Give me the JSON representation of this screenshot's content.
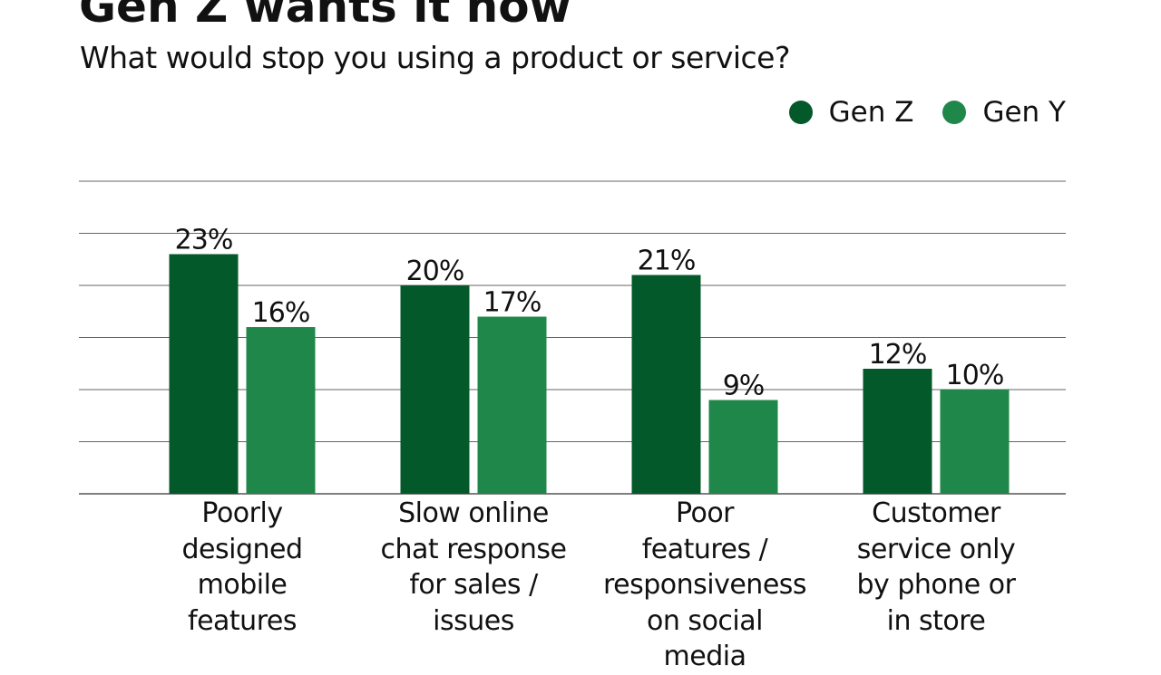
{
  "chart_data": {
    "type": "bar",
    "title": "Gen Z wants it now",
    "subtitle": "What would stop you using a product or service?",
    "categories": [
      "Poorly designed mobile features",
      "Slow online chat response for sales / issues",
      "Poor features / responsiveness on social media",
      "Customer service only by phone or in store"
    ],
    "category_lines": [
      [
        "Poorly",
        "designed",
        "mobile",
        "features"
      ],
      [
        "Slow online",
        "chat response",
        "for sales /",
        "issues"
      ],
      [
        "Poor",
        "features /",
        "responsiveness",
        "on social",
        "media"
      ],
      [
        "Customer",
        "service only",
        "by phone or",
        "in store"
      ]
    ],
    "series": [
      {
        "name": "Gen Z",
        "values": [
          23,
          20,
          21,
          12
        ],
        "labels": [
          "23%",
          "20%",
          "21%",
          "12%"
        ],
        "color": "#04592a"
      },
      {
        "name": "Gen Y",
        "values": [
          16,
          17,
          9,
          10
        ],
        "labels": [
          "16%",
          "17%",
          "9%",
          "10%"
        ],
        "color": "#20874a"
      }
    ],
    "ylim": [
      0,
      30
    ],
    "gridlines": [
      0,
      5,
      10,
      15,
      20,
      25,
      30
    ],
    "grid": true,
    "legend": "top-right",
    "xlabel": "",
    "ylabel": ""
  }
}
